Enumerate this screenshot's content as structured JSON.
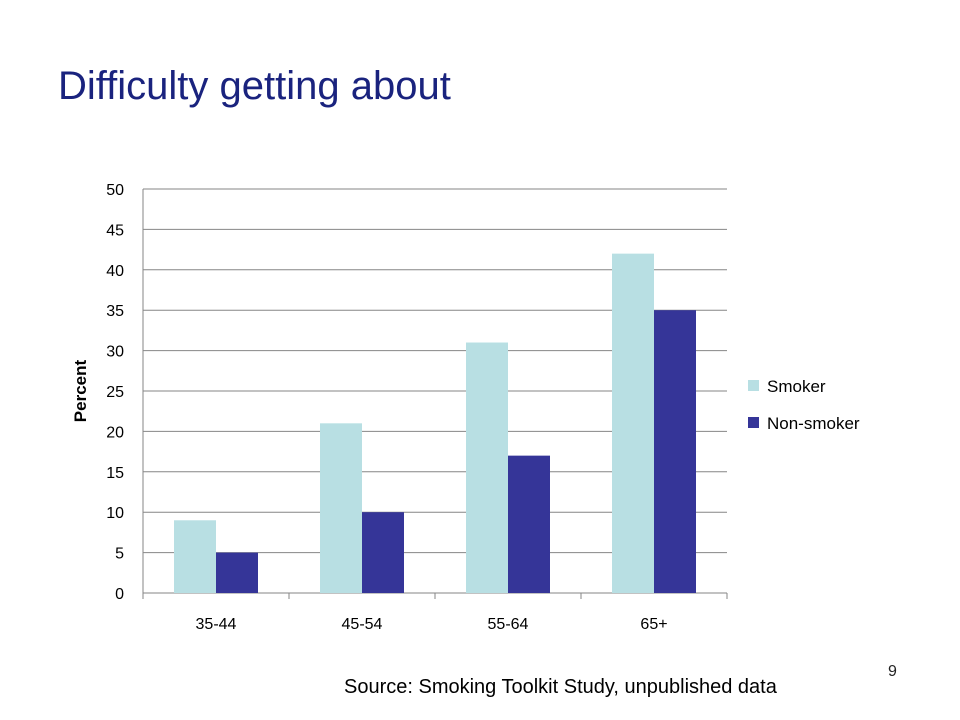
{
  "slide": {
    "title": "Difficulty getting about",
    "source": "Source: Smoking Toolkit Study, unpublished data",
    "page_number": "9"
  },
  "colors": {
    "title": "#1a237e",
    "smoker": "#b8dfe3",
    "non_smoker": "#353598",
    "gridline": "#868686"
  },
  "chart_data": {
    "type": "bar",
    "title": "",
    "xlabel": "",
    "ylabel": "Percent",
    "categories": [
      "35-44",
      "45-54",
      "55-64",
      "65+"
    ],
    "series": [
      {
        "name": "Smoker",
        "values": [
          9,
          21,
          31,
          42
        ]
      },
      {
        "name": "Non-smoker",
        "values": [
          5,
          10,
          17,
          35
        ]
      }
    ],
    "ylim": [
      0,
      50
    ],
    "yticks": [
      0,
      5,
      10,
      15,
      20,
      25,
      30,
      35,
      40,
      45,
      50
    ],
    "grid": true,
    "legend_position": "right"
  }
}
